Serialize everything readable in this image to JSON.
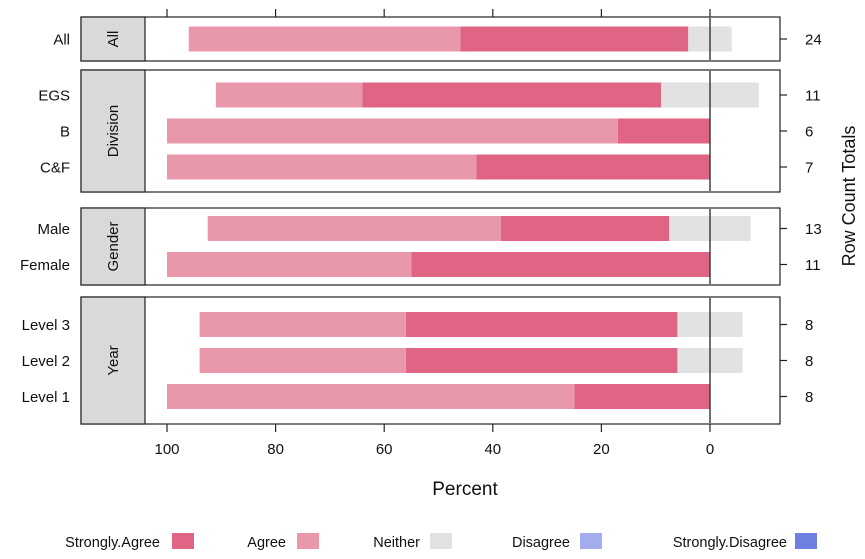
{
  "chart_data": {
    "type": "bar",
    "orientation": "horizontal",
    "stacked": "diverging",
    "xlabel": "Percent",
    "right_axis_label": "Row Count Totals",
    "xlim": [
      -10,
      115
    ],
    "x_ticks": [
      100,
      80,
      60,
      40,
      20,
      0
    ],
    "x_tick_labels": [
      "100",
      "80",
      "60",
      "40",
      "20",
      "0"
    ],
    "legend_position": "bottom",
    "legend": [
      {
        "name": "Strongly.Agree",
        "color": "#e06585"
      },
      {
        "name": "Agree",
        "color": "#e898aa"
      },
      {
        "name": "Neither",
        "color": "#e2e2e2"
      },
      {
        "name": "Disagree",
        "color": "#a3acec"
      },
      {
        "name": "Strongly.Disagree",
        "color": "#6f7fe0"
      }
    ],
    "panels": [
      {
        "strip": "All",
        "rows": [
          {
            "label": "All",
            "strongly_agree": 42,
            "agree": 50,
            "neither": 8,
            "disagree": 0,
            "strongly_disagree": 0,
            "total": "24"
          }
        ]
      },
      {
        "strip": "Division",
        "rows": [
          {
            "label": "EGS",
            "strongly_agree": 55,
            "agree": 27,
            "neither": 18,
            "disagree": 0,
            "strongly_disagree": 0,
            "total": "11"
          },
          {
            "label": "B",
            "strongly_agree": 17,
            "agree": 83,
            "neither": 0,
            "disagree": 0,
            "strongly_disagree": 0,
            "total": "6"
          },
          {
            "label": "C&F",
            "strongly_agree": 43,
            "agree": 57,
            "neither": 0,
            "disagree": 0,
            "strongly_disagree": 0,
            "total": "7"
          }
        ]
      },
      {
        "strip": "Gender",
        "rows": [
          {
            "label": "Male",
            "strongly_agree": 31,
            "agree": 54,
            "neither": 15,
            "disagree": 0,
            "strongly_disagree": 0,
            "total": "13"
          },
          {
            "label": "Female",
            "strongly_agree": 55,
            "agree": 45,
            "neither": 0,
            "disagree": 0,
            "strongly_disagree": 0,
            "total": "11"
          }
        ]
      },
      {
        "strip": "Year",
        "rows": [
          {
            "label": "Level 3",
            "strongly_agree": 50,
            "agree": 38,
            "neither": 12,
            "disagree": 0,
            "strongly_disagree": 0,
            "total": "8"
          },
          {
            "label": "Level 2",
            "strongly_agree": 50,
            "agree": 38,
            "neither": 12,
            "disagree": 0,
            "strongly_disagree": 0,
            "total": "8"
          },
          {
            "label": "Level 1",
            "strongly_agree": 25,
            "agree": 75,
            "neither": 0,
            "disagree": 0,
            "strongly_disagree": 0,
            "total": "8"
          }
        ]
      }
    ]
  }
}
